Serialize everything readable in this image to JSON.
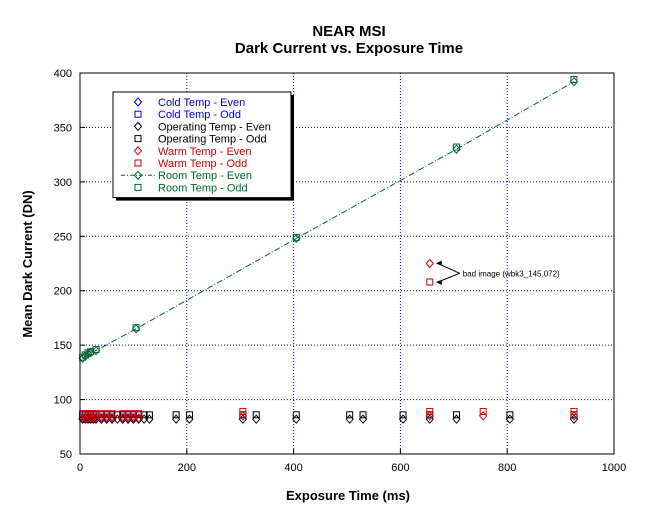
{
  "chart_data": {
    "type": "scatter",
    "title": "NEAR MSI",
    "subtitle": "Dark Current vs. Exposure Time",
    "xlabel": "Exposure Time (ms)",
    "ylabel": "Mean Dark Current (DN)",
    "xlim": [
      0,
      1000
    ],
    "ylim": [
      50,
      400
    ],
    "xticks": [
      0,
      200,
      400,
      600,
      800,
      1000
    ],
    "yticks": [
      50,
      100,
      150,
      200,
      250,
      300,
      350,
      400
    ],
    "grid": true,
    "legend_position": "top-left",
    "series": [
      {
        "name": "Cold Temp - Even",
        "color": "#0000cc",
        "marker": "diamond",
        "x": [
          5,
          10,
          15,
          20,
          25,
          30,
          40,
          50,
          60,
          80,
          90,
          100
        ],
        "y": [
          82,
          82,
          82,
          82,
          82,
          82,
          82,
          82,
          82,
          82,
          82,
          82
        ]
      },
      {
        "name": "Cold Temp - Odd",
        "color": "#0000cc",
        "marker": "square",
        "x": [
          5,
          10,
          15,
          20,
          25,
          30,
          40,
          50,
          60,
          80,
          90,
          100
        ],
        "y": [
          84,
          84,
          84,
          84,
          84,
          84,
          84,
          84,
          84,
          84,
          84,
          84
        ]
      },
      {
        "name": "Operating Temp - Even",
        "color": "#000000",
        "marker": "diamond",
        "x": [
          5,
          10,
          15,
          20,
          25,
          30,
          40,
          50,
          60,
          70,
          80,
          90,
          100,
          110,
          120,
          130,
          180,
          205,
          305,
          330,
          405,
          505,
          530,
          605,
          655,
          705,
          805,
          925
        ],
        "y": [
          82,
          82,
          82,
          82,
          82,
          82,
          82,
          82,
          82,
          82,
          82,
          82,
          82,
          82,
          82,
          82,
          82,
          82,
          82,
          82,
          82,
          82,
          82,
          82,
          82,
          82,
          82,
          82
        ]
      },
      {
        "name": "Operating Temp - Odd",
        "color": "#000000",
        "marker": "square",
        "x": [
          5,
          10,
          15,
          20,
          25,
          30,
          40,
          50,
          60,
          70,
          80,
          90,
          100,
          110,
          120,
          130,
          180,
          205,
          305,
          330,
          405,
          505,
          530,
          605,
          655,
          705,
          805,
          925
        ],
        "y": [
          86,
          86,
          86,
          86,
          86,
          86,
          86,
          86,
          86,
          86,
          86,
          86,
          86,
          86,
          86,
          86,
          86,
          86,
          86,
          86,
          86,
          86,
          86,
          86,
          86,
          86,
          86,
          86
        ]
      },
      {
        "name": "Warm Temp - Even",
        "color": "#cc0000",
        "marker": "diamond",
        "x": [
          5,
          10,
          15,
          20,
          25,
          30,
          40,
          50,
          60,
          80,
          90,
          100,
          110,
          305,
          655,
          755,
          925,
          655
        ],
        "y": [
          83,
          83,
          83,
          83,
          83,
          83,
          83,
          83,
          83,
          83,
          83,
          83,
          83,
          85,
          85,
          85,
          85,
          225
        ]
      },
      {
        "name": "Warm Temp - Odd",
        "color": "#cc0000",
        "marker": "square",
        "x": [
          5,
          10,
          15,
          20,
          25,
          30,
          40,
          50,
          60,
          80,
          90,
          100,
          110,
          305,
          655,
          755,
          925,
          655
        ],
        "y": [
          87,
          87,
          87,
          87,
          87,
          87,
          87,
          87,
          87,
          87,
          87,
          87,
          87,
          89,
          89,
          89,
          89,
          208
        ]
      },
      {
        "name": "Room Temp - Even",
        "color": "#006633",
        "marker": "diamond",
        "line": "dashdot",
        "x": [
          5,
          10,
          15,
          20,
          30,
          105,
          405,
          705,
          925
        ],
        "y": [
          138,
          140,
          142,
          143,
          145,
          165,
          248,
          330,
          392
        ]
      },
      {
        "name": "Room Temp - Odd",
        "color": "#006633",
        "marker": "square",
        "x": [
          5,
          10,
          15,
          20,
          30,
          105,
          405,
          705,
          925
        ],
        "y": [
          139,
          141,
          143,
          144,
          146,
          166,
          249,
          332,
          394
        ]
      }
    ],
    "annotations": [
      {
        "text": "bad image (wbk3_145.072)",
        "x": 655,
        "y": 216
      }
    ]
  }
}
